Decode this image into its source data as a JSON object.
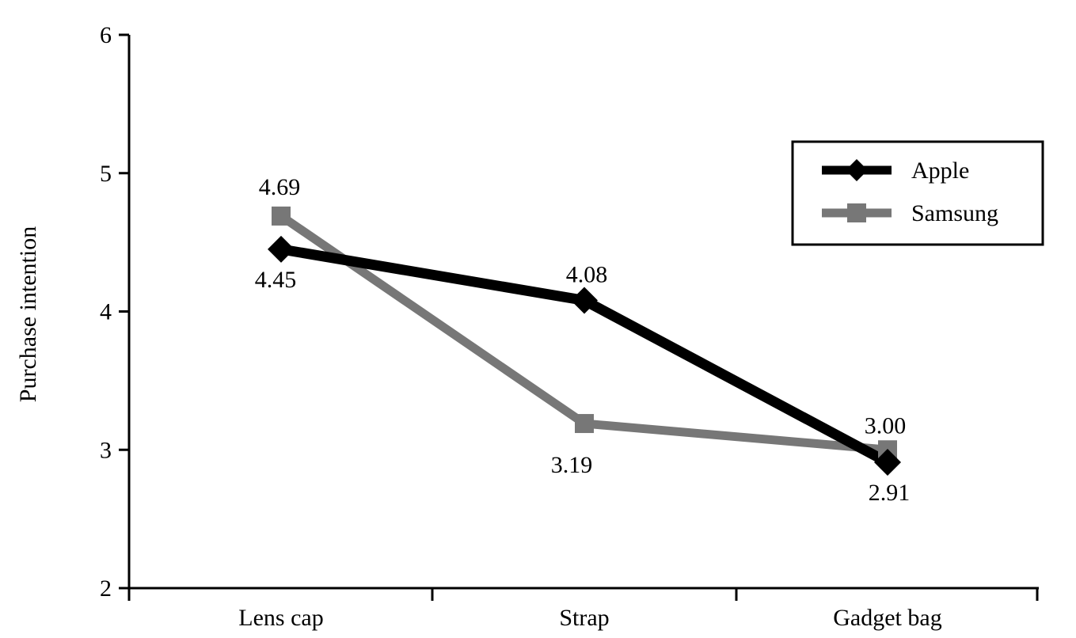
{
  "chart_data": {
    "type": "line",
    "ylabel": "Purchase intention",
    "xlabel": "",
    "categories": [
      "Lens cap",
      "Strap",
      "Gadget bag"
    ],
    "ylim": [
      2,
      6
    ],
    "yticks": [
      "2",
      "3",
      "4",
      "5",
      "6"
    ],
    "series": [
      {
        "name": "Apple",
        "values": [
          4.45,
          4.08,
          2.91
        ],
        "labels": [
          "4.45",
          "4.08",
          "2.91"
        ],
        "color": "#000000",
        "marker": "diamond"
      },
      {
        "name": "Samsung",
        "values": [
          4.69,
          3.19,
          3.0
        ],
        "labels": [
          "4.69",
          "3.19",
          "3.00"
        ],
        "color": "#777777",
        "marker": "square"
      }
    ],
    "legend": "top-right",
    "grid": false
  }
}
